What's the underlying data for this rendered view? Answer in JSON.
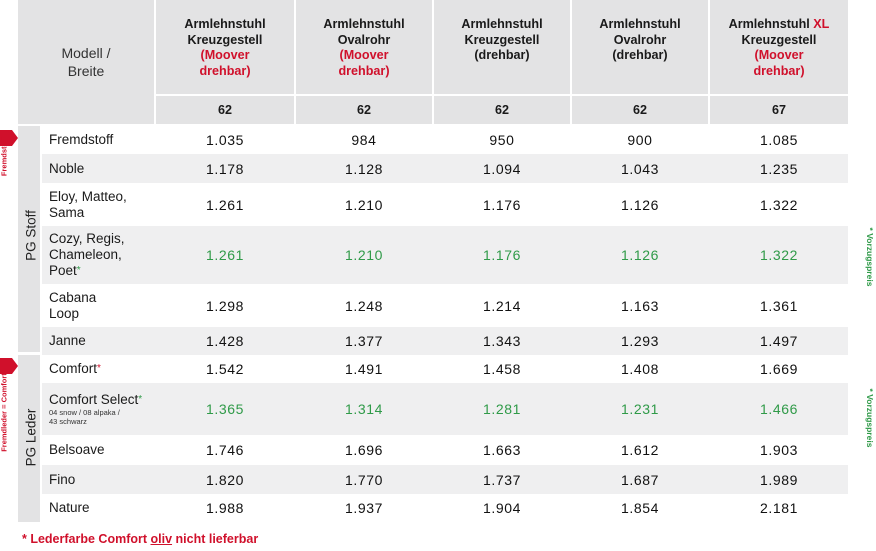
{
  "header": {
    "corner_label": "Modell /\nBreite",
    "columns": [
      {
        "line1": "Armlehnstuhl",
        "line1_xl": "",
        "line2": "Kreuzgestell",
        "line3": "(Moover",
        "line4": "drehbar)",
        "red": true,
        "width": "62"
      },
      {
        "line1": "Armlehnstuhl",
        "line1_xl": "",
        "line2": "Ovalrohr",
        "line3": "(Moover",
        "line4": "drehbar)",
        "red": true,
        "width": "62"
      },
      {
        "line1": "Armlehnstuhl",
        "line1_xl": "",
        "line2": "Kreuzgestell",
        "line3": "(drehbar)",
        "line4": "",
        "red": false,
        "width": "62"
      },
      {
        "line1": "Armlehnstuhl",
        "line1_xl": "",
        "line2": "Ovalrohr",
        "line3": "(drehbar)",
        "line4": "",
        "red": false,
        "width": "62"
      },
      {
        "line1": "Armlehnstuhl",
        "line1_xl": "XL",
        "line2": "Kreuzgestell",
        "line3": "(Moover",
        "line4": "drehbar)",
        "red": true,
        "width": "67"
      }
    ]
  },
  "groups": [
    {
      "name": "PG Stoff",
      "side_label": "Fremdstoff",
      "right_label": "* Vorzugspreis"
    },
    {
      "name": "PG Leder",
      "side_label": "Fremdleder = Comfort",
      "right_label": "* Vorzugspreis"
    }
  ],
  "rows": [
    {
      "label": "Fremdstoff",
      "asterisk": "",
      "sub": "",
      "values": [
        "1.035",
        "984",
        "950",
        "900",
        "1.085"
      ],
      "green": false
    },
    {
      "label": "Noble",
      "asterisk": "",
      "sub": "",
      "values": [
        "1.178",
        "1.128",
        "1.094",
        "1.043",
        "1.235"
      ],
      "green": false
    },
    {
      "label": "Eloy, Matteo,\nSama",
      "asterisk": "",
      "sub": "",
      "values": [
        "1.261",
        "1.210",
        "1.176",
        "1.126",
        "1.322"
      ],
      "green": false
    },
    {
      "label": "Cozy, Regis,\nChameleon,\nPoet",
      "asterisk": "*",
      "sub": "",
      "values": [
        "1.261",
        "1.210",
        "1.176",
        "1.126",
        "1.322"
      ],
      "green": true
    },
    {
      "label": "Cabana\nLoop",
      "asterisk": "",
      "sub": "",
      "values": [
        "1.298",
        "1.248",
        "1.214",
        "1.163",
        "1.361"
      ],
      "green": false
    },
    {
      "label": "Janne",
      "asterisk": "",
      "sub": "",
      "values": [
        "1.428",
        "1.377",
        "1.343",
        "1.293",
        "1.497"
      ],
      "green": false
    },
    {
      "label": "Comfort",
      "asterisk": "*",
      "sub": "",
      "values": [
        "1.542",
        "1.491",
        "1.458",
        "1.408",
        "1.669"
      ],
      "green": false
    },
    {
      "label": "Comfort Select",
      "asterisk": "*",
      "sub": "04 snow / 08 alpaka /\n43 schwarz",
      "values": [
        "1.365",
        "1.314",
        "1.281",
        "1.231",
        "1.466"
      ],
      "green": true
    },
    {
      "label": "Belsoave",
      "asterisk": "",
      "sub": "",
      "values": [
        "1.746",
        "1.696",
        "1.663",
        "1.612",
        "1.903"
      ],
      "green": false
    },
    {
      "label": "Fino",
      "asterisk": "",
      "sub": "",
      "values": [
        "1.820",
        "1.770",
        "1.737",
        "1.687",
        "1.989"
      ],
      "green": false
    },
    {
      "label": "Nature",
      "asterisk": "",
      "sub": "",
      "values": [
        "1.988",
        "1.937",
        "1.904",
        "1.854",
        "2.181"
      ],
      "green": false
    }
  ],
  "footnote": {
    "prefix": "* Lederfarbe Comfort ",
    "underlined": "oliv",
    "suffix": " nicht lieferbar"
  },
  "colors": {
    "red": "#d0102b",
    "green": "#2f9a48",
    "header_gray": "#e3e3e4",
    "row_gray": "#efeff0"
  }
}
